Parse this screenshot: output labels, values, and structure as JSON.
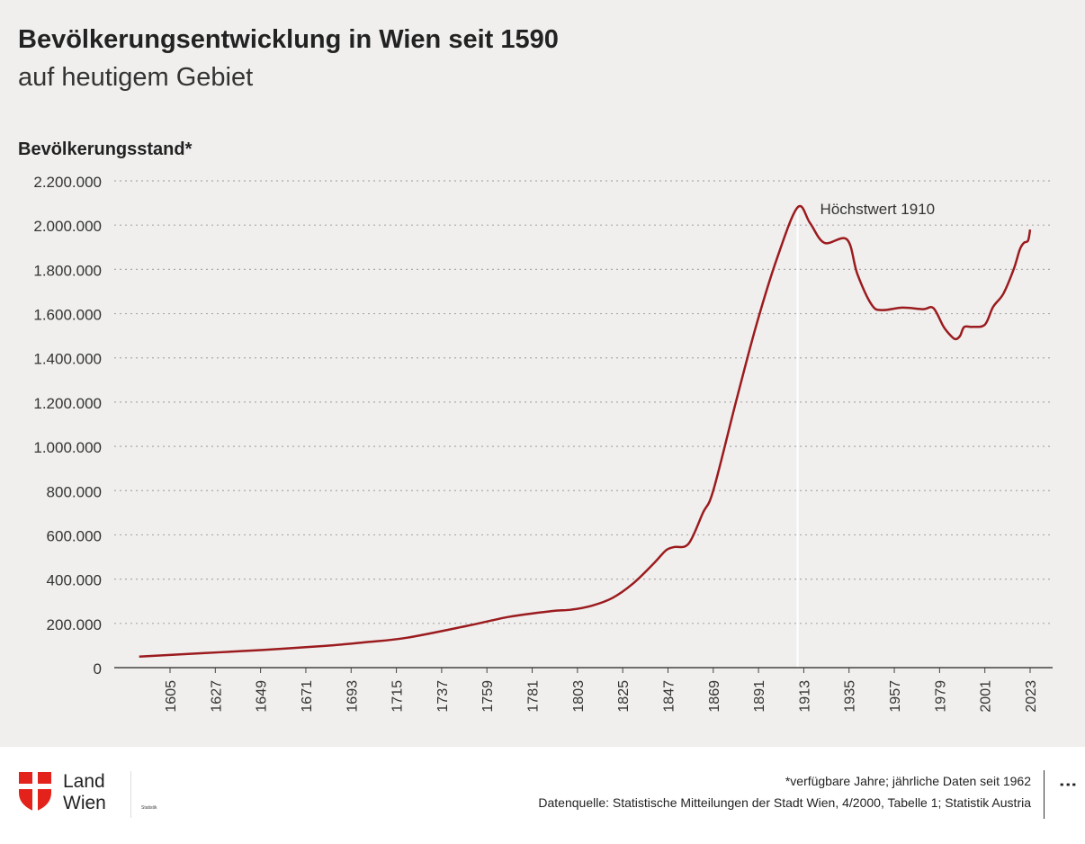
{
  "header": {
    "title": "Bevölkerungsentwicklung in Wien seit 1590",
    "subtitle": "auf heutigem Gebiet"
  },
  "chart_data": {
    "type": "line",
    "title": "Bevölkerungsentwicklung in Wien seit 1590",
    "subtitle": "auf heutigem Gebiet",
    "ylabel": "Bevölkerungsstand*",
    "xlabel": "",
    "xlim": [
      1590,
      2023
    ],
    "ylim": [
      0,
      2200000
    ],
    "grid": "horizontal dotted",
    "line_color": "#9b1b1e",
    "yticks": [
      "0",
      "200.000",
      "400.000",
      "600.000",
      "800.000",
      "1.000.000",
      "1.200.000",
      "1.400.000",
      "1.600.000",
      "1.800.000",
      "2.000.000",
      "2.200.000"
    ],
    "xticks": [
      "1605",
      "1627",
      "1649",
      "1671",
      "1693",
      "1715",
      "1737",
      "1759",
      "1781",
      "1803",
      "1825",
      "1847",
      "1869",
      "1891",
      "1913",
      "1935",
      "1957",
      "1979",
      "2001",
      "2023"
    ],
    "annotation": {
      "text": "Höchstwert 1910",
      "x": 1910
    },
    "x": [
      1590,
      1620,
      1650,
      1680,
      1700,
      1720,
      1750,
      1770,
      1790,
      1800,
      1810,
      1820,
      1830,
      1840,
      1846,
      1850,
      1857,
      1864,
      1869,
      1880,
      1890,
      1900,
      1910,
      1916,
      1923,
      1934,
      1939,
      1946,
      1951,
      1961,
      1971,
      1976,
      1981,
      1985,
      1987,
      1989,
      1991,
      1995,
      2001,
      2005,
      2010,
      2015,
      2018,
      2020,
      2022,
      2023
    ],
    "y": [
      50000,
      65000,
      80000,
      98000,
      115000,
      135000,
      190000,
      230000,
      255000,
      262000,
      280000,
      315000,
      380000,
      470000,
      530000,
      545000,
      560000,
      700000,
      800000,
      1200000,
      1550000,
      1850000,
      2080000,
      2010000,
      1920000,
      1935000,
      1780000,
      1640000,
      1616000,
      1627000,
      1620000,
      1625000,
      1540000,
      1495000,
      1485000,
      1500000,
      1540000,
      1540000,
      1550000,
      1630000,
      1690000,
      1800000,
      1890000,
      1920000,
      1930000,
      1980000
    ]
  },
  "footer": {
    "logo_text_1": "Land",
    "logo_text_2": "Wien",
    "logo_small": "Statistik",
    "note": "*verfügbare Jahre; jährliche Daten seit 1962",
    "source": "Datenquelle: Statistische Mitteilungen der Stadt Wien, 4/2000, Tabelle 1; Statistik Austria",
    "more_icon": "vertical-ellipsis-icon"
  }
}
